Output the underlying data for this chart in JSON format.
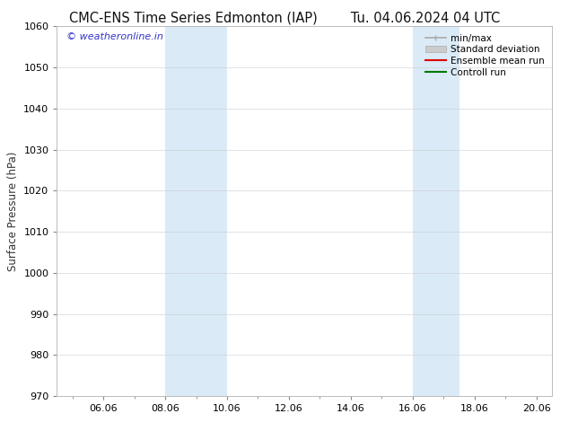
{
  "title_left": "CMC-ENS Time Series Edmonton (IAP)",
  "title_right": "Tu. 04.06.2024 04 UTC",
  "ylabel": "Surface Pressure (hPa)",
  "xlabel": "",
  "xlim_left": 4.5,
  "xlim_right": 20.5,
  "ylim_bottom": 970,
  "ylim_top": 1060,
  "yticks": [
    970,
    980,
    990,
    1000,
    1010,
    1020,
    1030,
    1040,
    1050,
    1060
  ],
  "xtick_labels": [
    "06.06",
    "08.06",
    "10.06",
    "12.06",
    "14.06",
    "16.06",
    "18.06",
    "20.06"
  ],
  "xtick_positions": [
    6,
    8,
    10,
    12,
    14,
    16,
    18,
    20
  ],
  "shaded_bands": [
    {
      "x_start": 8.0,
      "x_end": 10.0
    },
    {
      "x_start": 16.0,
      "x_end": 17.5
    }
  ],
  "shade_color": "#daeaf7",
  "watermark_text": "© weatheronline.in",
  "watermark_color": "#3333cc",
  "legend_entries": [
    {
      "label": "min/max",
      "color": "#aaaaaa",
      "lw": 1.2,
      "style": "minmax"
    },
    {
      "label": "Standard deviation",
      "color": "#cccccc",
      "lw": 5,
      "style": "band"
    },
    {
      "label": "Ensemble mean run",
      "color": "#dd0000",
      "lw": 1.5,
      "style": "line"
    },
    {
      "label": "Controll run",
      "color": "#007700",
      "lw": 1.5,
      "style": "line"
    }
  ],
  "bg_color": "#ffffff",
  "axes_bg_color": "#ffffff",
  "title_fontsize": 10.5,
  "tick_fontsize": 8,
  "legend_fontsize": 7.5,
  "ylabel_fontsize": 8.5
}
